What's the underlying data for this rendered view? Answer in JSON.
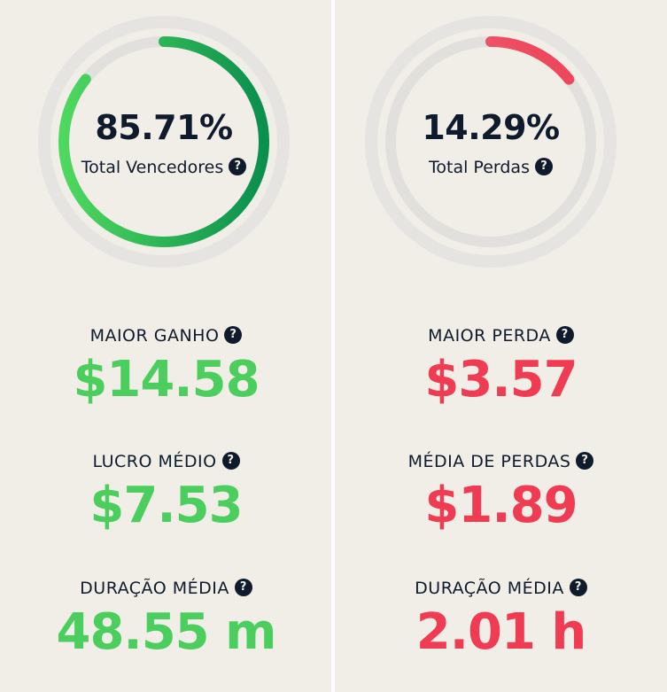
{
  "colors": {
    "background": "#f1eee8",
    "text": "#0f1b2d",
    "positive": "#4cce5e",
    "negative": "#ef3c52",
    "ring_track": "#e2e0dc",
    "green_gradient_start": "#4fd85f",
    "green_gradient_end": "#0a8f4d",
    "red_gradient_start": "#e0a0a8",
    "red_gradient_end": "#f0384f"
  },
  "left": {
    "ring": {
      "percent": 85.71,
      "value_text": "85.71%",
      "label": "Total Vencedores",
      "help_icon": "question-circle-icon"
    },
    "stats": [
      {
        "label": "MAIOR GANHO",
        "value": "$14.58"
      },
      {
        "label": "LUCRO MÉDIO",
        "value": "$7.53"
      },
      {
        "label": "DURAÇÃO MÉDIA",
        "value": "48.55 m"
      }
    ]
  },
  "right": {
    "ring": {
      "percent": 14.29,
      "value_text": "14.29%",
      "label": "Total Perdas",
      "help_icon": "question-circle-icon"
    },
    "stats": [
      {
        "label": "MAIOR PERDA",
        "value": "$3.57"
      },
      {
        "label": "MÉDIA DE PERDAS",
        "value": "$1.89"
      },
      {
        "label": "DURAÇÃO MÉDIA",
        "value": "2.01 h"
      }
    ]
  }
}
